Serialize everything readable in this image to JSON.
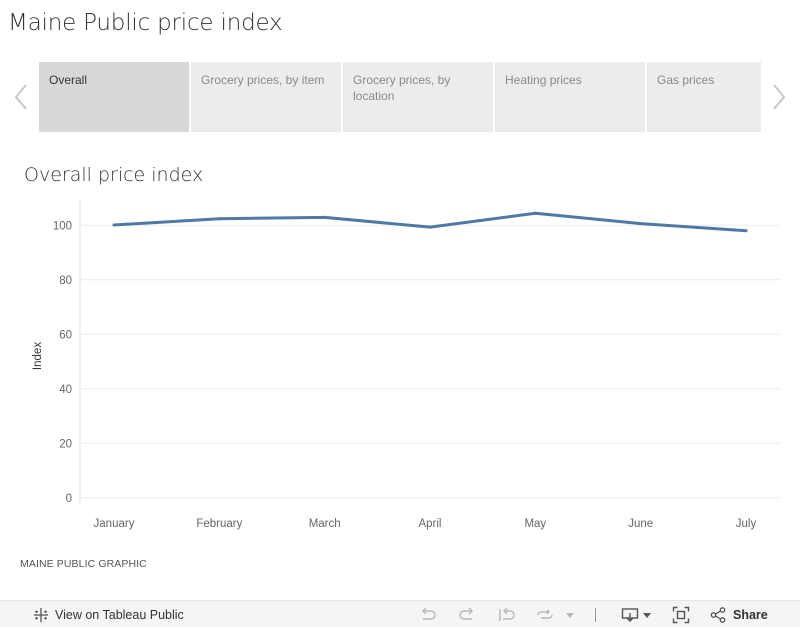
{
  "page": {
    "title": "Maine Public price index",
    "source": "MAINE PUBLIC GRAPHIC"
  },
  "tabs": [
    {
      "label": "Overall",
      "active": true
    },
    {
      "label": "Grocery prices, by item",
      "active": false
    },
    {
      "label": "Grocery prices, by location",
      "active": false
    },
    {
      "label": "Heating prices",
      "active": false
    },
    {
      "label": "Gas prices",
      "active": false
    }
  ],
  "icons": {
    "tabs_prev": "chevron-left-icon",
    "tabs_next": "chevron-right-icon",
    "tableau": "tableau-logo-icon",
    "undo": "undo-icon",
    "redo": "redo-icon",
    "revert": "revert-icon",
    "refresh": "refresh-icon",
    "pause": "pause-icon",
    "download": "download-icon",
    "fullscreen": "fullscreen-icon",
    "share": "share-icon"
  },
  "toolbar": {
    "view_label": "View on Tableau Public",
    "share_label": "Share"
  },
  "colors": {
    "line": "#4e79a7",
    "grid": "#ececec",
    "tab_active": "#d8d8d8",
    "tab_inactive": "#ececec"
  },
  "chart_data": {
    "type": "line",
    "title": "Overall price index",
    "xlabel": "",
    "ylabel": "Index",
    "categories": [
      "January",
      "February",
      "March",
      "April",
      "May",
      "June",
      "July"
    ],
    "series": [
      {
        "values": [
          100.1,
          102.4,
          102.9,
          99.3,
          104.4,
          100.6,
          98.0
        ]
      }
    ],
    "yticks": [
      0,
      20,
      40,
      60,
      80,
      100
    ],
    "ylim": [
      -3,
      110
    ],
    "grid": true,
    "legend": "none"
  }
}
